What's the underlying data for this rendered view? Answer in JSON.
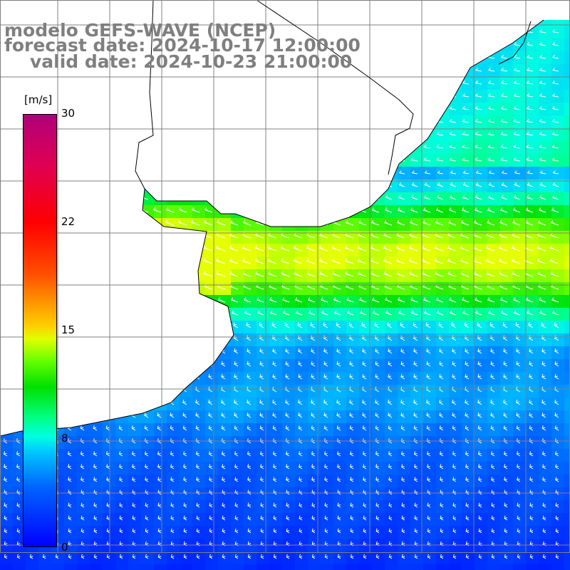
{
  "title": {
    "model": "modelo GEFS-WAVE (NCEP)",
    "forecast": "forecast date: 2024-10-17 12:00:00",
    "valid": "valid date: 2024-10-23 21:00:00"
  },
  "colorbar": {
    "unit": "[m/s]",
    "ticks": [
      "30",
      "22",
      "15",
      "8",
      "0"
    ],
    "range": [
      0,
      30
    ],
    "colors": [
      "#0000ff",
      "#0066ff",
      "#00ffe0",
      "#00e000",
      "#e0ff00",
      "#ff9000",
      "#ff0000",
      "#b0007a"
    ]
  },
  "layers": {
    "field": "wind speed",
    "vectors": "wind direction arrows",
    "land_color": "#ffffff",
    "coast_color": "#000000",
    "grid_color": "#808080"
  }
}
